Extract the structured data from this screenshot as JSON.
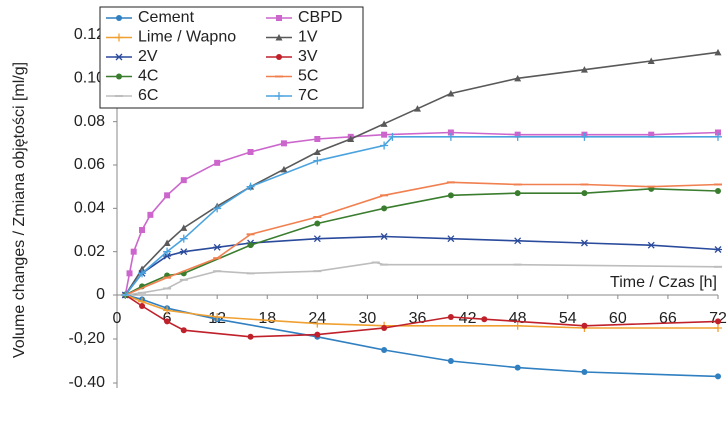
{
  "chart_data": {
    "type": "line",
    "y_label": "Volume changes / Zmiana objętości [ml/g]",
    "x_label": "Time / Czas [h]",
    "xlim": [
      0,
      72
    ],
    "xticks": [
      0,
      6,
      12,
      18,
      24,
      30,
      36,
      42,
      48,
      54,
      60,
      66,
      72
    ],
    "ylim": [
      -0.4,
      0.12
    ],
    "yticks": [
      0.12,
      {
        "value": 0.1,
        "label": "0.10"
      },
      0.08,
      0.06,
      0.04,
      0.02,
      0,
      {
        "value": -0.2,
        "label": "-0,20"
      },
      {
        "value": -0.4,
        "label": "-0.40"
      }
    ],
    "legend": "upper left",
    "series": [
      {
        "name": "Cement",
        "color": "#2f7fc1",
        "marker": "circle",
        "x": [
          1,
          3,
          6,
          12,
          24,
          32,
          40,
          48,
          56,
          72
        ],
        "values": [
          0,
          -0.02,
          -0.06,
          -0.11,
          -0.19,
          -0.25,
          -0.3,
          -0.33,
          -0.35,
          -0.37
        ]
      },
      {
        "name": "CBPD",
        "color": "#cc66cc",
        "marker": "square",
        "x": [
          1,
          1.5,
          2,
          3,
          4,
          6,
          8,
          12,
          16,
          20,
          24,
          28,
          32,
          40,
          48,
          56,
          64,
          72
        ],
        "values": [
          0,
          0.01,
          0.02,
          0.03,
          0.037,
          0.046,
          0.053,
          0.061,
          0.066,
          0.07,
          0.072,
          0.073,
          0.074,
          0.075,
          0.074,
          0.074,
          0.074,
          0.075
        ]
      },
      {
        "name": "Lime / Wapno",
        "color": "#f0a030",
        "marker": "cross",
        "x": [
          1,
          3,
          6,
          12,
          24,
          32,
          48,
          56,
          72
        ],
        "values": [
          0,
          -0.03,
          -0.07,
          -0.1,
          -0.13,
          -0.14,
          -0.14,
          -0.15,
          -0.15
        ]
      },
      {
        "name": "1V",
        "color": "#595959",
        "marker": "triangle",
        "x": [
          1,
          3,
          6,
          8,
          12,
          16,
          20,
          24,
          28,
          32,
          36,
          40,
          48,
          56,
          64,
          72
        ],
        "values": [
          0,
          0.012,
          0.024,
          0.031,
          0.041,
          0.05,
          0.058,
          0.066,
          0.072,
          0.079,
          0.086,
          0.093,
          0.1,
          0.104,
          0.108,
          0.112
        ]
      },
      {
        "name": "2V",
        "color": "#2a4a9c",
        "marker": "star",
        "x": [
          1,
          3,
          6,
          8,
          12,
          16,
          24,
          32,
          40,
          48,
          56,
          64,
          72
        ],
        "values": [
          0,
          0.01,
          0.018,
          0.02,
          0.022,
          0.024,
          0.026,
          0.027,
          0.026,
          0.025,
          0.024,
          0.023,
          0.021
        ]
      },
      {
        "name": "3V",
        "color": "#c0202a",
        "marker": "circle",
        "x": [
          1,
          3,
          6,
          8,
          16,
          24,
          32,
          40,
          44,
          56,
          72
        ],
        "values": [
          0,
          -0.05,
          -0.12,
          -0.16,
          -0.19,
          -0.18,
          -0.15,
          -0.1,
          -0.11,
          -0.14,
          -0.12
        ]
      },
      {
        "name": "4C",
        "color": "#3a7d2e",
        "marker": "circle",
        "x": [
          1,
          3,
          6,
          8,
          16,
          24,
          32,
          40,
          48,
          56,
          64,
          72
        ],
        "values": [
          0,
          0.004,
          0.009,
          0.01,
          0.023,
          0.033,
          0.04,
          0.046,
          0.047,
          0.047,
          0.049,
          0.048
        ]
      },
      {
        "name": "5C",
        "color": "#f08050",
        "marker": "dash",
        "x": [
          1,
          6,
          12,
          16,
          24,
          32,
          40,
          48,
          56,
          64,
          72
        ],
        "values": [
          0,
          0.008,
          0.017,
          0.028,
          0.036,
          0.046,
          0.052,
          0.051,
          0.051,
          0.05,
          0.051
        ]
      },
      {
        "name": "6C",
        "color": "#bdbdbd",
        "marker": "dash",
        "x": [
          1,
          3,
          6,
          8,
          12,
          16,
          24,
          31,
          32,
          48,
          72
        ],
        "values": [
          0,
          0.001,
          0.003,
          0.007,
          0.011,
          0.01,
          0.011,
          0.015,
          0.014,
          0.014,
          0.013
        ]
      },
      {
        "name": "7C",
        "color": "#4aa3df",
        "marker": "cross",
        "x": [
          1,
          3,
          6,
          8,
          12,
          16,
          24,
          32,
          33,
          40,
          48,
          56,
          72
        ],
        "values": [
          0,
          0.01,
          0.02,
          0.026,
          0.04,
          0.05,
          0.062,
          0.069,
          0.073,
          0.073,
          0.073,
          0.073,
          0.073
        ]
      }
    ]
  }
}
